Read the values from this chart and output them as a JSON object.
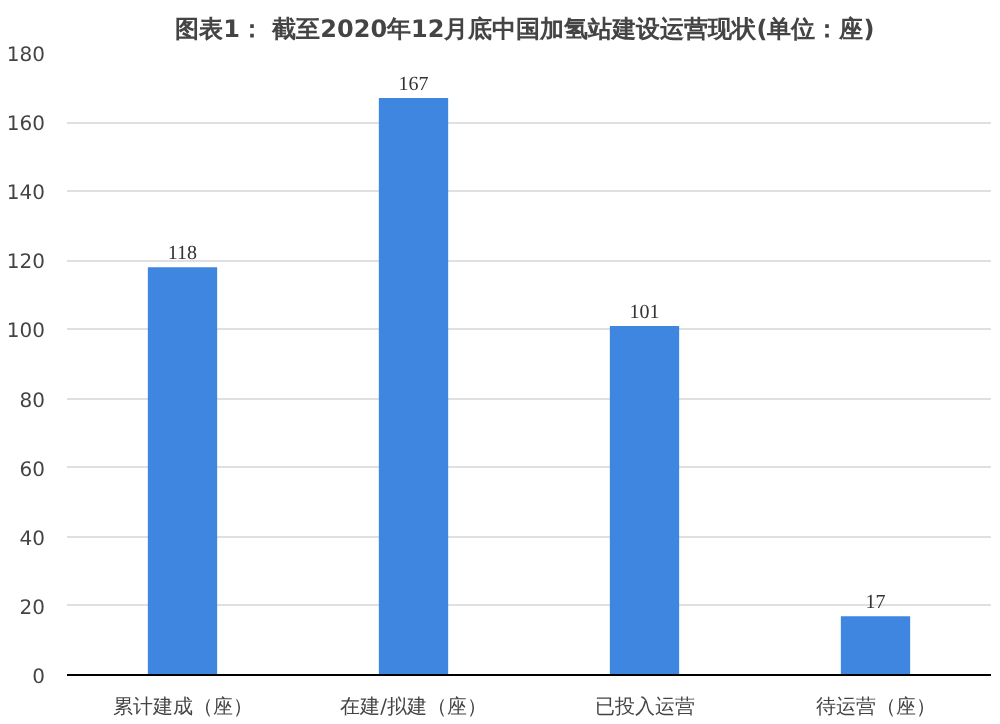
{
  "chart_data": {
    "type": "bar",
    "title": "图表1：  截至2020年12月底中国加氢站建设运营现状(单位：座)",
    "categories": [
      "累计建成（座）",
      "在建/拟建（座）",
      "已投入运营",
      "待运营（座）"
    ],
    "values": [
      118,
      167,
      101,
      17
    ],
    "color": "#3f86e0",
    "ylim": [
      0,
      180
    ],
    "yticks": [
      0,
      20,
      40,
      60,
      80,
      100,
      120,
      140,
      160,
      180
    ],
    "grid": "y",
    "data_labels": true
  }
}
